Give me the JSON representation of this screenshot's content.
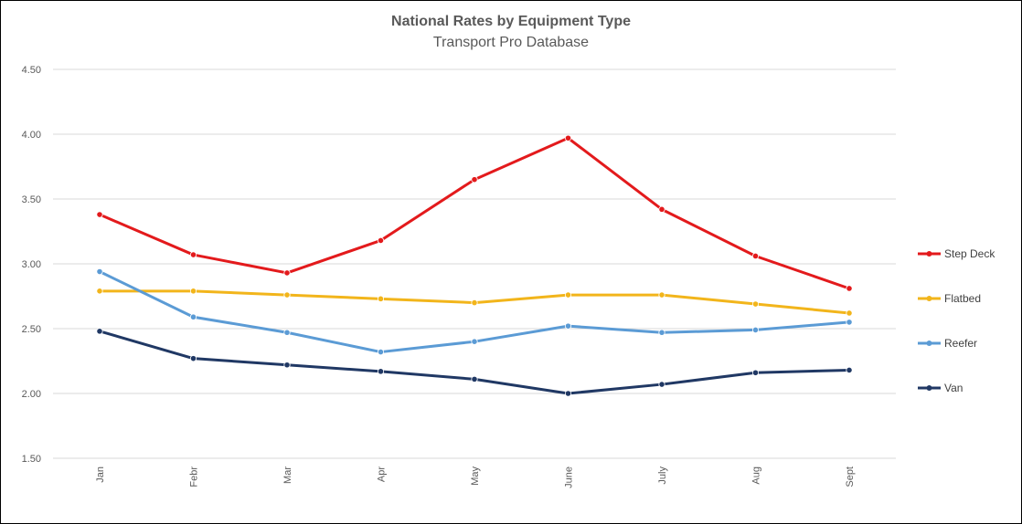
{
  "chart_data": {
    "type": "line",
    "title": "National Rates by Equipment Type",
    "subtitle": "Transport Pro Database",
    "xlabel": "",
    "ylabel": "",
    "categories": [
      "Jan",
      "Febr",
      "Mar",
      "Apr",
      "May",
      "June",
      "July",
      "Aug",
      "Sept"
    ],
    "ylim": [
      1.5,
      4.5
    ],
    "yticks": [
      "1.50",
      "2.00",
      "2.50",
      "3.00",
      "3.50",
      "4.00",
      "4.50"
    ],
    "grid": true,
    "legend_position": "right",
    "series": [
      {
        "name": "Step Deck",
        "color": "#e31a1c",
        "values": [
          3.38,
          3.07,
          2.93,
          3.18,
          3.65,
          3.97,
          3.42,
          3.06,
          2.81
        ]
      },
      {
        "name": "Flatbed",
        "color": "#f2b51b",
        "values": [
          2.79,
          2.79,
          2.76,
          2.73,
          2.7,
          2.76,
          2.76,
          2.69,
          2.62
        ]
      },
      {
        "name": "Reefer",
        "color": "#5b9bd5",
        "values": [
          2.94,
          2.59,
          2.47,
          2.32,
          2.4,
          2.52,
          2.47,
          2.49,
          2.55
        ]
      },
      {
        "name": "Van",
        "color": "#203864",
        "values": [
          2.48,
          2.27,
          2.22,
          2.17,
          2.11,
          2.0,
          2.07,
          2.16,
          2.18
        ]
      }
    ]
  }
}
